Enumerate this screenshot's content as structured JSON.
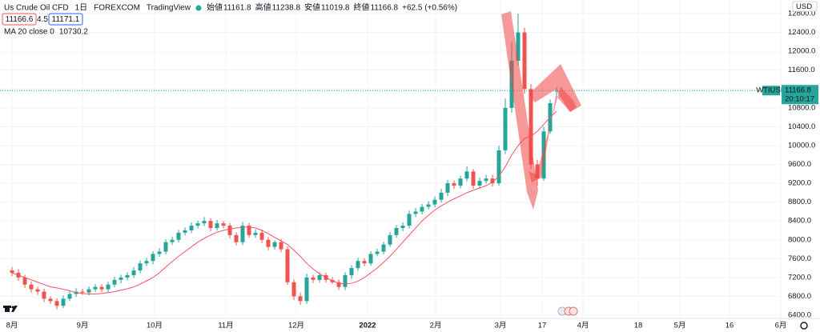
{
  "chart_data": {
    "type": "candlestick",
    "title": "Us Crude Oil CFD",
    "interval": "1日",
    "exchange": "FOREXCOM",
    "brand": "TradingView",
    "ohlc_labels": [
      "始値",
      "高値",
      "安値",
      "終値"
    ],
    "change": "+62.5 (+0.56%)",
    "bid": 11166.6,
    "spread": 4.5,
    "ask": 11171.1,
    "symbol": "WTIUSD",
    "countdown": "20:10:17",
    "currency": "USD",
    "up_color": "#26a69a",
    "down_color": "#ef5350",
    "grid": true,
    "xlim": [
      -3.75,
      240
    ],
    "ylim": [
      6332,
      13089
    ],
    "xticks": [
      {
        "value": 0,
        "label": "8月"
      },
      {
        "value": 22,
        "label": "9月"
      },
      {
        "value": 44.5,
        "label": "10月"
      },
      {
        "value": 66.75,
        "label": "11月"
      },
      {
        "value": 88.75,
        "label": "12月"
      },
      {
        "value": 111,
        "label": "2022"
      },
      {
        "value": 132.25,
        "label": "2月"
      },
      {
        "value": 152.5,
        "label": "3月"
      },
      {
        "value": 165.5,
        "label": "17"
      },
      {
        "value": 178.25,
        "label": "4月"
      },
      {
        "value": 195.5,
        "label": "18"
      },
      {
        "value": 208.5,
        "label": "5月"
      },
      {
        "value": 224,
        "label": "16"
      },
      {
        "value": 240,
        "label": "6月"
      }
    ],
    "yticks": [
      {
        "value": 6400,
        "label": "6400.0"
      },
      {
        "value": 6800,
        "label": "6800.0"
      },
      {
        "value": 7200,
        "label": "7200.0"
      },
      {
        "value": 7600,
        "label": "7600.0"
      },
      {
        "value": 8000,
        "label": "8000.0"
      },
      {
        "value": 8400,
        "label": "8400.0"
      },
      {
        "value": 8800,
        "label": "8800.0"
      },
      {
        "value": 9200,
        "label": "9200.0"
      },
      {
        "value": 9600,
        "label": "9600.0"
      },
      {
        "value": 10000,
        "label": "10000.0"
      },
      {
        "value": 10400,
        "label": "10400.0"
      },
      {
        "value": 10800,
        "label": "10800.0"
      },
      {
        "value": 11200,
        "label": "11200.0"
      },
      {
        "value": 11600,
        "label": "11600.0"
      },
      {
        "value": 12000,
        "label": "12000.0"
      },
      {
        "value": 12400,
        "label": "12400.0"
      },
      {
        "value": 12800,
        "label": "12800.0"
      }
    ],
    "x": [
      0,
      2,
      4,
      6,
      8,
      10,
      12,
      14,
      16,
      18,
      20,
      22,
      24,
      26,
      28,
      30,
      32,
      34,
      36,
      38,
      40,
      42,
      44,
      46,
      48,
      50,
      52,
      54,
      56,
      58,
      60,
      62,
      64,
      66,
      68,
      70,
      72,
      74,
      76,
      78,
      80,
      82,
      84,
      86,
      88,
      90,
      92,
      94,
      96,
      98,
      100,
      102,
      104,
      106,
      108,
      110,
      112,
      114,
      116,
      118,
      120,
      122,
      124,
      126,
      128,
      130,
      132,
      134,
      136,
      138,
      140,
      142,
      144,
      146,
      148,
      150,
      152,
      154,
      156,
      158,
      160,
      162,
      164,
      166,
      168,
      170
    ],
    "open": [
      7350,
      7300,
      7200,
      7050,
      6950,
      6900,
      6750,
      6700,
      6600,
      6750,
      6850,
      6900,
      6880,
      6950,
      7000,
      6950,
      7050,
      7150,
      7200,
      7250,
      7350,
      7500,
      7550,
      7700,
      7750,
      7950,
      8000,
      8150,
      8200,
      8300,
      8350,
      8400,
      8250,
      8350,
      8300,
      8100,
      7950,
      8300,
      8100,
      8150,
      8000,
      7850,
      7950,
      7800,
      7100,
      6800,
      6700,
      7200,
      7150,
      7250,
      7150,
      7100,
      7000,
      7250,
      7400,
      7550,
      7500,
      7700,
      7750,
      7900,
      8100,
      8250,
      8300,
      8550,
      8600,
      8700,
      8750,
      8850,
      9000,
      9200,
      9150,
      9300,
      9450,
      9150,
      9250,
      9300,
      9200,
      9900,
      10800,
      11800,
      12400,
      11200,
      9600,
      9300,
      10300,
      11161.8
    ],
    "high": [
      7420,
      7380,
      7260,
      7110,
      7010,
      6960,
      6800,
      6760,
      6820,
      6920,
      6970,
      6960,
      7010,
      7060,
      7060,
      7110,
      7220,
      7260,
      7310,
      7420,
      7560,
      7620,
      7760,
      7820,
      8010,
      8070,
      8210,
      8260,
      8370,
      8410,
      8480,
      8460,
      8420,
      8400,
      8360,
      8160,
      8380,
      8360,
      8220,
      8220,
      8060,
      7990,
      8020,
      7860,
      7160,
      6880,
      7280,
      7260,
      7310,
      7300,
      7210,
      7160,
      7310,
      7460,
      7620,
      7610,
      7760,
      7810,
      7960,
      8170,
      8310,
      8370,
      8620,
      8680,
      8760,
      8820,
      8920,
      9080,
      9270,
      9260,
      9360,
      9560,
      9500,
      9320,
      9380,
      9380,
      10000,
      11000,
      12200,
      12800,
      12500,
      11300,
      9700,
      10400,
      10980,
      11238.8
    ],
    "low": [
      7230,
      7130,
      6980,
      6880,
      6830,
      6680,
      6640,
      6530,
      6550,
      6700,
      6790,
      6830,
      6820,
      6890,
      6890,
      6890,
      6990,
      7080,
      7140,
      7190,
      7290,
      7440,
      7480,
      7640,
      7690,
      7890,
      7940,
      8090,
      8140,
      8240,
      8290,
      8180,
      8190,
      8240,
      8030,
      7880,
      7890,
      8040,
      8040,
      7930,
      7780,
      7790,
      7740,
      7040,
      6720,
      6620,
      6640,
      7080,
      7090,
      7090,
      7060,
      6940,
      6930,
      7170,
      7340,
      7440,
      7450,
      7650,
      7690,
      7850,
      8040,
      8180,
      8240,
      8480,
      8540,
      8640,
      8690,
      8790,
      8930,
      9080,
      9090,
      9240,
      9080,
      9080,
      9190,
      9130,
      9150,
      9820,
      10700,
      11700,
      11100,
      9500,
      9150,
      9250,
      10250,
      11019.8
    ],
    "close": [
      7300,
      7200,
      7050,
      6950,
      6900,
      6750,
      6700,
      6600,
      6750,
      6850,
      6900,
      6880,
      6950,
      7000,
      6950,
      7050,
      7150,
      7200,
      7250,
      7350,
      7500,
      7550,
      7700,
      7750,
      7950,
      8000,
      8150,
      8200,
      8300,
      8350,
      8400,
      8250,
      8350,
      8300,
      8100,
      7950,
      8300,
      8100,
      8150,
      8000,
      7850,
      7950,
      7800,
      7100,
      6800,
      6700,
      7200,
      7150,
      7250,
      7150,
      7100,
      7000,
      7250,
      7400,
      7550,
      7500,
      7700,
      7750,
      7900,
      8100,
      8250,
      8300,
      8550,
      8600,
      8700,
      8750,
      8850,
      9000,
      9200,
      9150,
      9300,
      9450,
      9150,
      9250,
      9300,
      9200,
      9900,
      10800,
      11800,
      12400,
      11200,
      9600,
      9300,
      10300,
      10900,
      11166.8
    ],
    "series": [
      {
        "name": "MA 20 close 0",
        "color": "#f7525f",
        "values": [
          7300,
          7250,
          7200,
          7150,
          7100,
          7050,
          7000,
          6980,
          6950,
          6920,
          6880,
          6860,
          6850,
          6850,
          6860,
          6880,
          6900,
          6930,
          6960,
          7000,
          7060,
          7130,
          7200,
          7300,
          7420,
          7540,
          7650,
          7750,
          7850,
          7950,
          8030,
          8100,
          8160,
          8200,
          8230,
          8250,
          8270,
          8270,
          8250,
          8200,
          8130,
          8050,
          7980,
          7900,
          7780,
          7650,
          7500,
          7380,
          7280,
          7200,
          7130,
          7080,
          7060,
          7080,
          7120,
          7200,
          7300,
          7400,
          7520,
          7650,
          7800,
          7950,
          8100,
          8250,
          8400,
          8520,
          8630,
          8720,
          8800,
          8870,
          8930,
          9000,
          9050,
          9100,
          9150,
          9220,
          9350,
          9550,
          9800,
          10000,
          10150,
          10200,
          10300,
          10450,
          10600,
          10730.2
        ]
      }
    ]
  }
}
